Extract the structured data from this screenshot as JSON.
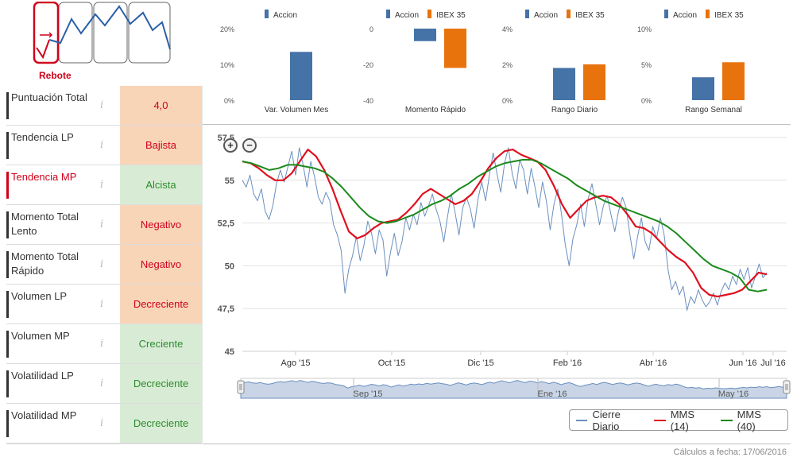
{
  "pattern": {
    "label": "Rebote"
  },
  "indicators": [
    {
      "name": "Puntuación Total",
      "value": "4,0",
      "tone": "orange",
      "active": false
    },
    {
      "name": "Tendencia LP",
      "value": "Bajista",
      "tone": "orange",
      "active": false
    },
    {
      "name": "Tendencia MP",
      "value": "Alcista",
      "tone": "green",
      "active": true
    },
    {
      "name": "Momento Total Lento",
      "value": "Negativo",
      "tone": "orange",
      "active": false
    },
    {
      "name": "Momento Total Rápido",
      "value": "Negativo",
      "tone": "orange",
      "active": false
    },
    {
      "name": "Volumen LP",
      "value": "Decreciente",
      "tone": "orange",
      "active": false
    },
    {
      "name": "Volumen MP",
      "value": "Creciente",
      "tone": "green",
      "active": false
    },
    {
      "name": "Volatilidad LP",
      "value": "Decreciente",
      "tone": "green",
      "active": false
    },
    {
      "name": "Volatilidad MP",
      "value": "Decreciente",
      "tone": "green",
      "active": false
    }
  ],
  "info_glyph": "i",
  "colors": {
    "accion": "#4572a7",
    "ibex": "#e8730c",
    "cierre": "#6a8fbf",
    "mms14": "#e0101e",
    "mms40": "#1b8a1b"
  },
  "chart_data": [
    {
      "type": "bar",
      "title": "Var. Volumen Mes",
      "series": [
        {
          "name": "Accion",
          "values": [
            13.5
          ]
        }
      ],
      "yticks": [
        "20%",
        "10%",
        "0%"
      ],
      "ylim": [
        0,
        20
      ]
    },
    {
      "type": "bar",
      "title": "Momento Rápido",
      "series": [
        {
          "name": "Accion",
          "values": [
            -7
          ]
        },
        {
          "name": "IBEX 35",
          "values": [
            -22
          ]
        }
      ],
      "yticks": [
        "0",
        "-20",
        "-40"
      ],
      "ylim": [
        -40,
        0
      ]
    },
    {
      "type": "bar",
      "title": "Rango Diario",
      "series": [
        {
          "name": "Accion",
          "values": [
            1.8
          ]
        },
        {
          "name": "IBEX 35",
          "values": [
            2.0
          ]
        }
      ],
      "yticks": [
        "4%",
        "2%",
        "0%"
      ],
      "ylim": [
        0,
        4
      ]
    },
    {
      "type": "bar",
      "title": "Rango Semanal",
      "series": [
        {
          "name": "Accion",
          "values": [
            3.2
          ]
        },
        {
          "name": "IBEX 35",
          "values": [
            5.3
          ]
        }
      ],
      "yticks": [
        "10%",
        "5%",
        "0%"
      ],
      "ylim": [
        0,
        10
      ]
    },
    {
      "type": "line",
      "title": "",
      "ylim": [
        45,
        57.5
      ],
      "yticks": [
        "57,5",
        "55",
        "52,5",
        "50",
        "47,5",
        "45"
      ],
      "xticks": [
        "Ago '15",
        "Oct '15",
        "Dic '15",
        "Feb '16",
        "Abr '16",
        "Jun '16",
        "Jul '16"
      ],
      "navigator_ticks": [
        "Sep '15",
        "Ene '16",
        "May '16"
      ],
      "series": [
        {
          "name": "Cierre Diario",
          "values": [
            55.0,
            54.6,
            55.3,
            54.2,
            53.8,
            54.5,
            53.2,
            52.7,
            53.5,
            54.8,
            55.6,
            54.9,
            55.8,
            56.7,
            55.3,
            56.9,
            55.9,
            54.6,
            56.1,
            55.2,
            54.0,
            53.6,
            54.3,
            53.8,
            52.4,
            51.8,
            50.9,
            48.4,
            49.8,
            50.6,
            51.7,
            50.3,
            51.2,
            52.6,
            51.9,
            50.7,
            52.1,
            51.5,
            49.4,
            50.8,
            51.9,
            50.6,
            51.4,
            52.8,
            52.1,
            53.0,
            52.4,
            53.7,
            52.9,
            53.5,
            54.2,
            53.3,
            52.6,
            51.4,
            52.9,
            54.2,
            53.1,
            51.8,
            53.4,
            54.0,
            53.3,
            52.2,
            53.9,
            54.9,
            53.8,
            55.3,
            56.6,
            55.4,
            54.3,
            56.0,
            56.9,
            55.4,
            54.5,
            56.2,
            55.6,
            54.2,
            55.7,
            54.6,
            53.4,
            54.9,
            53.8,
            52.1,
            53.6,
            54.5,
            53.0,
            51.2,
            50.0,
            51.6,
            52.4,
            53.6,
            52.3,
            53.9,
            54.8,
            53.6,
            52.4,
            53.5,
            54.1,
            53.0,
            52.0,
            53.2,
            54.0,
            53.4,
            51.8,
            50.4,
            51.7,
            52.8,
            51.4,
            50.9,
            52.3,
            51.6,
            52.8,
            51.8,
            49.8,
            48.6,
            49.1,
            48.3,
            48.8,
            47.4,
            48.2,
            47.8,
            48.6,
            48.0,
            47.6,
            47.9,
            48.4,
            47.7,
            48.5,
            49.0,
            48.6,
            49.4,
            48.9,
            49.8,
            49.2,
            49.9,
            48.7,
            49.4,
            50.1,
            49.3,
            49.6
          ]
        },
        {
          "name": "MMS (14)",
          "values": [
            56.1,
            56.0,
            55.7,
            55.3,
            55.0,
            55.0,
            55.4,
            56.1,
            56.8,
            56.4,
            55.6,
            54.5,
            53.2,
            52.0,
            51.6,
            51.8,
            52.2,
            52.5,
            52.6,
            52.7,
            53.1,
            53.6,
            54.2,
            54.5,
            54.2,
            53.9,
            53.6,
            53.8,
            54.2,
            54.9,
            55.7,
            56.3,
            56.7,
            56.8,
            56.5,
            56.3,
            56.1,
            55.6,
            54.7,
            53.6,
            52.8,
            53.3,
            53.8,
            54.0,
            54.1,
            54.0,
            53.6,
            53.0,
            52.3,
            52.2,
            51.9,
            51.4,
            50.9,
            50.5,
            50.2,
            49.6,
            48.7,
            48.3,
            48.2,
            48.3,
            48.4,
            48.6,
            49.1,
            49.6,
            49.5
          ]
        },
        {
          "name": "MMS (40)",
          "values": [
            56.1,
            56.0,
            55.8,
            55.6,
            55.7,
            55.9,
            55.9,
            55.8,
            55.7,
            55.5,
            55.1,
            54.6,
            54.0,
            53.4,
            52.9,
            52.6,
            52.5,
            52.6,
            52.8,
            53.0,
            53.3,
            53.6,
            53.8,
            54.1,
            54.5,
            54.8,
            55.2,
            55.5,
            55.8,
            56.0,
            56.1,
            56.2,
            56.2,
            56.0,
            55.7,
            55.4,
            55.1,
            54.7,
            54.4,
            54.1,
            53.8,
            53.6,
            53.4,
            53.2,
            53.0,
            52.8,
            52.6,
            52.3,
            51.9,
            51.4,
            50.9,
            50.4,
            50.0,
            49.8,
            49.6,
            49.3,
            48.6,
            48.5,
            48.6
          ]
        }
      ]
    }
  ],
  "legend_labels": [
    "Accion",
    "IBEX 35"
  ],
  "footer": {
    "calc_date": "Cálculos a fecha: 17/06/2016"
  }
}
